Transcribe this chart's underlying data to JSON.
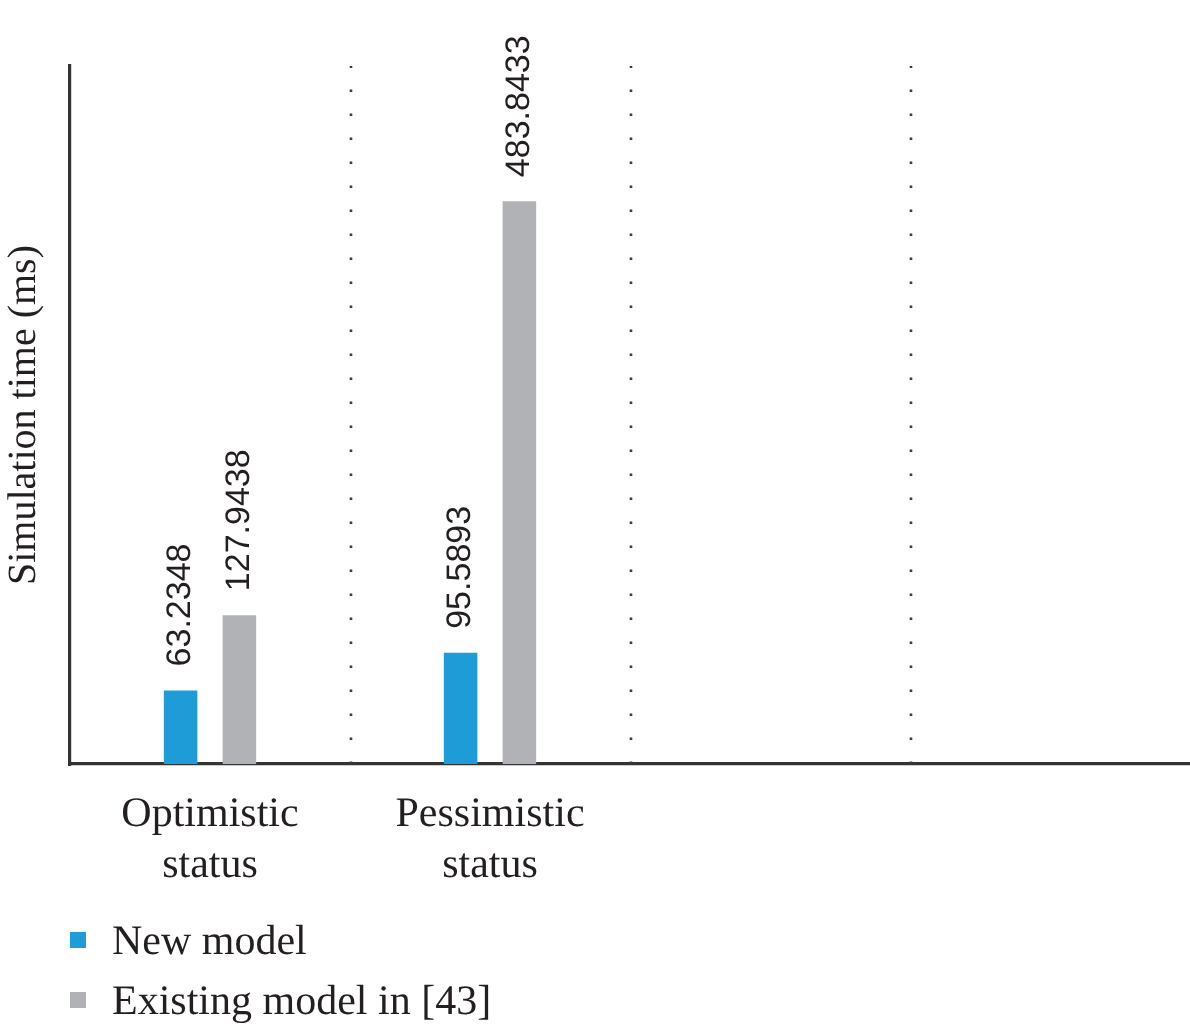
{
  "chart_data": {
    "type": "bar",
    "categories": [
      "Optimistic status",
      "Pessimistic status",
      null,
      null
    ],
    "ylabel": "Simulation time (ms)",
    "series": [
      {
        "name": "New model",
        "color": "#1e9cd8",
        "values": [
          63.2348,
          95.5893,
          null,
          null
        ]
      },
      {
        "name": "Existing model in [43]",
        "color": "#b1b2b5",
        "values": [
          127.9438,
          483.8433,
          null,
          null
        ]
      }
    ],
    "ylim": [
      0,
      600
    ],
    "tick_labels": "x",
    "data_labels": true,
    "grid": "x",
    "legend": "bottom left"
  }
}
